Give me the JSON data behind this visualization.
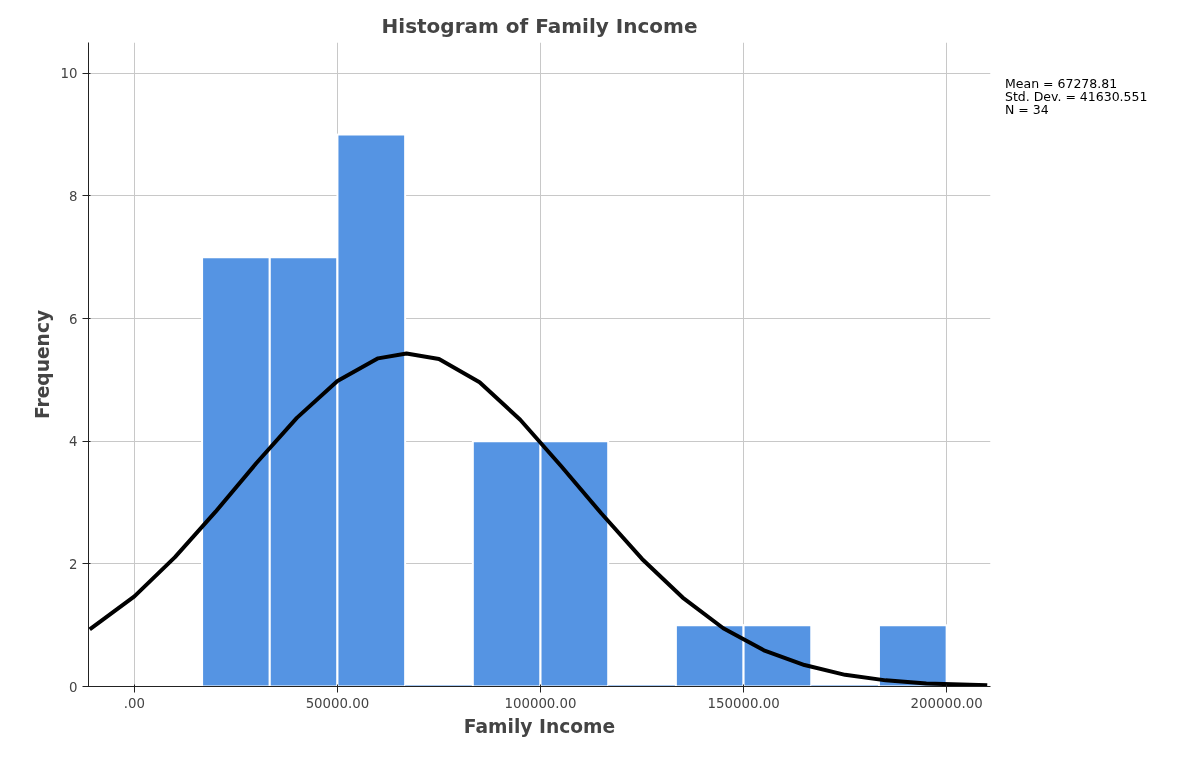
{
  "chart_data": {
    "type": "histogram",
    "title": "Histogram of Family Income",
    "xlabel": "Family Income",
    "ylabel": "Frequency",
    "annotations": [
      "Mean = 67278.81",
      "Std. Dev. = 41630.551",
      "N = 34"
    ],
    "series": [
      {
        "color": "#5594e3",
        "bins": [
          16667,
          33333,
          50000,
          66667,
          83333,
          100000,
          116667,
          133333,
          150000,
          166667,
          183333,
          200000
        ],
        "values": [
          7,
          7,
          9,
          0,
          4,
          4,
          0,
          1,
          1,
          0,
          1
        ]
      },
      {
        "type": "line",
        "color": "#000000",
        "x": [
          -11000,
          0,
          10000,
          20000,
          30000,
          40000,
          50000,
          60000,
          67000,
          75000,
          85000,
          95000,
          105000,
          115000,
          125000,
          135000,
          145000,
          155000,
          165000,
          175000,
          185000,
          195000,
          210000
        ],
        "values": [
          0.93,
          1.47,
          2.11,
          2.85,
          3.64,
          4.38,
          4.98,
          5.35,
          5.43,
          5.34,
          4.96,
          4.35,
          3.6,
          2.82,
          2.08,
          1.45,
          0.95,
          0.59,
          0.35,
          0.19,
          0.1,
          0.05,
          0.02
        ]
      }
    ],
    "xlim": [
      -11300,
      210800
    ],
    "ylim": [
      0,
      10.5
    ],
    "xticks": [
      {
        "value": 0,
        "label": ".00"
      },
      {
        "value": 50000,
        "label": "50000.00"
      },
      {
        "value": 100000,
        "label": "100000.00"
      },
      {
        "value": 150000,
        "label": "150000.00"
      },
      {
        "value": 200000,
        "label": "200000.00"
      }
    ],
    "yticks": [
      0,
      2,
      4,
      6,
      8,
      10
    ],
    "grid": true
  }
}
